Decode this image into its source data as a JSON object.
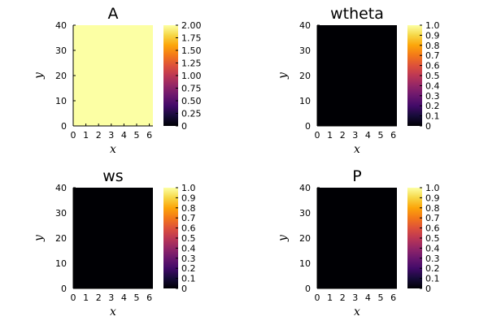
{
  "chart_data": [
    {
      "type": "heatmap",
      "title": "A",
      "xlabel": "x",
      "ylabel": "y",
      "xlim": [
        0,
        6.2832
      ],
      "ylim": [
        0,
        40
      ],
      "x_ticks": [
        "0",
        "1",
        "2",
        "3",
        "4",
        "5",
        "6"
      ],
      "y_ticks": [
        "0",
        "10",
        "20",
        "30",
        "40"
      ],
      "field_value": 2.0,
      "colorbar": {
        "colormap": "inferno",
        "clim": [
          0,
          2
        ],
        "ticks": [
          "0",
          "0.25",
          "0.50",
          "0.75",
          "1.00",
          "1.25",
          "1.50",
          "1.75",
          "2.00"
        ]
      }
    },
    {
      "type": "heatmap",
      "title": "wtheta",
      "xlabel": "x",
      "ylabel": "y",
      "xlim": [
        0,
        6.2832
      ],
      "ylim": [
        0,
        40
      ],
      "x_ticks": [
        "0",
        "1",
        "2",
        "3",
        "4",
        "5",
        "6"
      ],
      "y_ticks": [
        "0",
        "10",
        "20",
        "30",
        "40"
      ],
      "field_value": 0.0,
      "colorbar": {
        "colormap": "inferno",
        "clim": [
          0,
          1
        ],
        "ticks": [
          "0",
          "0.1",
          "0.2",
          "0.3",
          "0.4",
          "0.5",
          "0.6",
          "0.7",
          "0.8",
          "0.9",
          "1.0"
        ]
      }
    },
    {
      "type": "heatmap",
      "title": "ws",
      "xlabel": "x",
      "ylabel": "y",
      "xlim": [
        0,
        6.2832
      ],
      "ylim": [
        0,
        40
      ],
      "x_ticks": [
        "0",
        "1",
        "2",
        "3",
        "4",
        "5",
        "6"
      ],
      "y_ticks": [
        "0",
        "10",
        "20",
        "30",
        "40"
      ],
      "field_value": 0.0,
      "colorbar": {
        "colormap": "inferno",
        "clim": [
          0,
          1
        ],
        "ticks": [
          "0",
          "0.1",
          "0.2",
          "0.3",
          "0.4",
          "0.5",
          "0.6",
          "0.7",
          "0.8",
          "0.9",
          "1.0"
        ]
      }
    },
    {
      "type": "heatmap",
      "title": "P",
      "xlabel": "x",
      "ylabel": "y",
      "xlim": [
        0,
        6.2832
      ],
      "ylim": [
        0,
        40
      ],
      "x_ticks": [
        "0",
        "1",
        "2",
        "3",
        "4",
        "5",
        "6"
      ],
      "y_ticks": [
        "0",
        "10",
        "20",
        "30",
        "40"
      ],
      "field_value": 0.0,
      "colorbar": {
        "colormap": "inferno",
        "clim": [
          0,
          1
        ],
        "ticks": [
          "0",
          "0.1",
          "0.2",
          "0.3",
          "0.4",
          "0.5",
          "0.6",
          "0.7",
          "0.8",
          "0.9",
          "1.0"
        ]
      }
    }
  ]
}
